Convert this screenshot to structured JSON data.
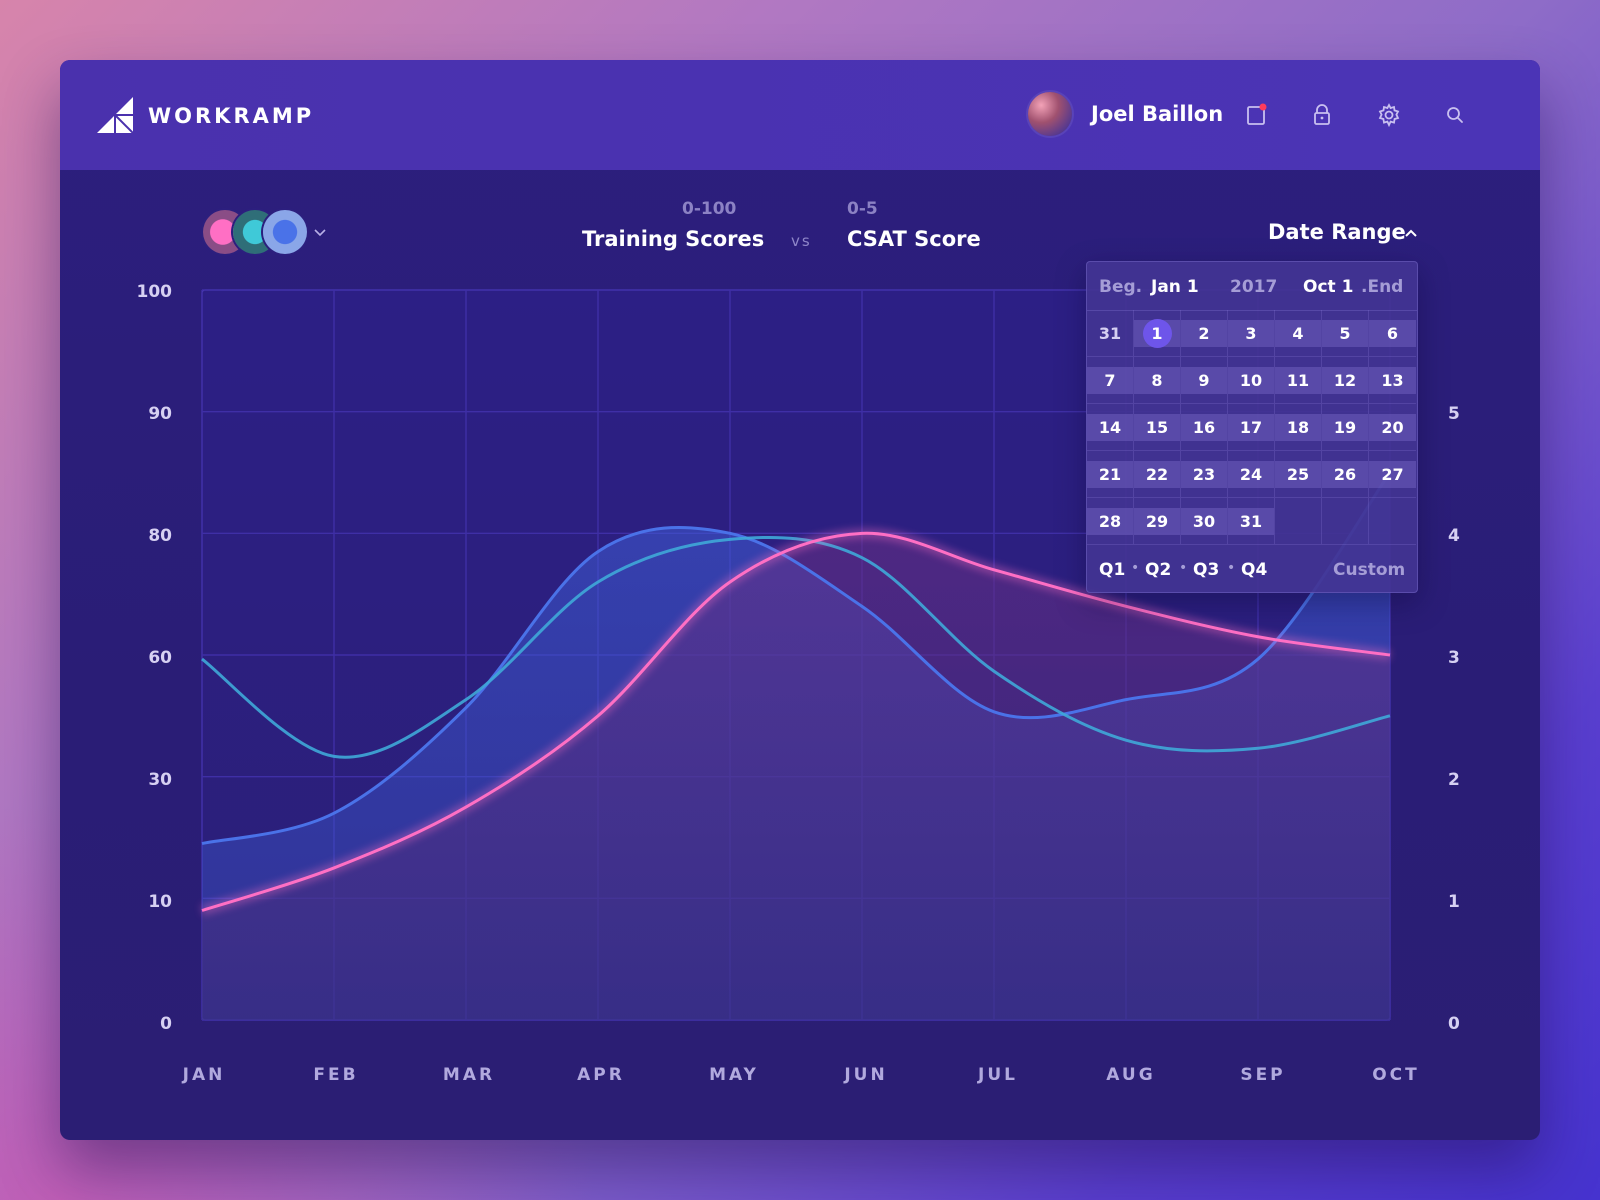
{
  "header": {
    "brand": "WORKRAMP",
    "user_name": "Joel Baillon",
    "icons": [
      "clipboard-icon",
      "lock-icon",
      "gear-icon",
      "search-icon"
    ],
    "notification_dot_color": "#ff3b5c"
  },
  "controls": {
    "metric_a_range": "0-100",
    "metric_a_title": "Training Scores",
    "vs": "vs",
    "metric_b_range": "0-5",
    "metric_b_title": "CSAT Score",
    "date_range_label": "Date Range"
  },
  "datepicker": {
    "beg_label": "Beg.",
    "start_value": "Jan 1",
    "year": "2017",
    "end_value": "Oct 1",
    "end_label": ".End",
    "days": [
      [
        "31",
        "1",
        "2",
        "3",
        "4",
        "5",
        "6"
      ],
      [
        "7",
        "8",
        "9",
        "10",
        "11",
        "12",
        "13"
      ],
      [
        "14",
        "15",
        "16",
        "17",
        "18",
        "19",
        "20"
      ],
      [
        "21",
        "22",
        "23",
        "24",
        "25",
        "26",
        "27"
      ],
      [
        "28",
        "29",
        "30",
        "31",
        "",
        "",
        ""
      ]
    ],
    "selected_day": "1",
    "quarters": [
      "Q1",
      "Q2",
      "Q3",
      "Q4"
    ],
    "custom_label": "Custom"
  },
  "chart_data": {
    "type": "line",
    "categories": [
      "JAN",
      "FEB",
      "MAR",
      "APR",
      "MAY",
      "JUN",
      "JUL",
      "AUG",
      "SEP",
      "OCT"
    ],
    "y_left_ticks": [
      "100",
      "90",
      "80",
      "60",
      "30",
      "10",
      "0"
    ],
    "y_right_ticks": [
      "5",
      "4",
      "3",
      "2",
      "1",
      "0"
    ],
    "series": [
      {
        "values": [
          19,
          24,
          47,
          77,
          80,
          68,
          46,
          49,
          59,
          85
        ],
        "color": "#4a72e8"
      },
      {
        "values": [
          59,
          35,
          49,
          72,
          79,
          76,
          56,
          39,
          37,
          45
        ],
        "color": "#3fa9d8"
      },
      {
        "values": [
          9,
          15,
          25,
          45,
          72,
          80,
          74,
          68,
          63,
          60
        ],
        "color": "#ff6fc4"
      }
    ],
    "grid": true,
    "colors": {
      "grid": "#3f2fa6",
      "axis_text": "#d6d0f2"
    }
  }
}
